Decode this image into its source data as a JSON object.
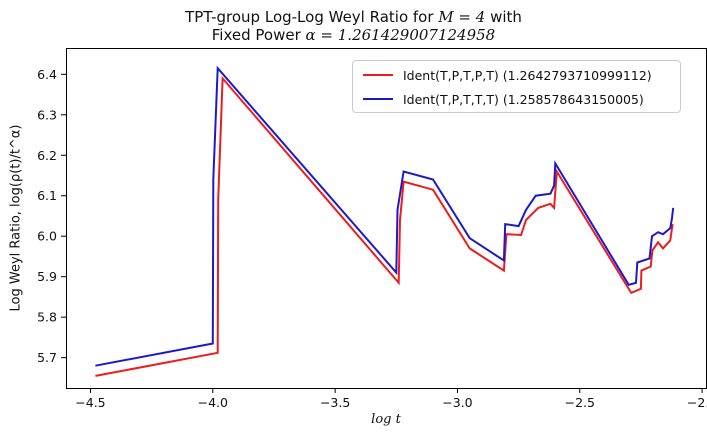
{
  "chart_data": {
    "type": "line",
    "title": "TPT-group Log-Log Weyl Ratio for M = 4 with Fixed Power α = 1.261429007124958",
    "title_parts": {
      "line1_prefix": "TPT-group Log-Log Weyl Ratio for ",
      "line1_math": "M = 4",
      "line1_suffix": " with",
      "line2_prefix": "Fixed Power ",
      "line2_math": "α = 1.261429007124958"
    },
    "xlabel": "log t",
    "ylabel": "Log Weyl Ratio, log(ρ(t)/t^α)",
    "xlim": [
      -4.6,
      -1.98
    ],
    "ylim": [
      5.625,
      6.465
    ],
    "xticks": [
      -4.5,
      -4.0,
      -3.5,
      -3.0,
      -2.5,
      -2.0
    ],
    "xtick_labels": [
      "−4.5",
      "−4.0",
      "−3.5",
      "−3.0",
      "−2.5",
      "−2.0"
    ],
    "yticks": [
      5.7,
      5.8,
      5.9,
      6.0,
      6.1,
      6.2,
      6.3,
      6.4
    ],
    "ytick_labels": [
      "5.7",
      "5.8",
      "5.9",
      "6.0",
      "6.1",
      "6.2",
      "6.3",
      "6.4"
    ],
    "grid": false,
    "legend_position": "upper right",
    "series": [
      {
        "name": "Ident(T,P,T,P,T) (1.2642793710999112)",
        "color": "#ee1c1c",
        "x": [
          -4.48,
          -3.98,
          -3.978,
          -3.96,
          -3.24,
          -3.235,
          -3.22,
          -3.1,
          -2.95,
          -2.81,
          -2.8,
          -2.74,
          -2.72,
          -2.67,
          -2.62,
          -2.605,
          -2.594,
          -2.29,
          -2.25,
          -2.248,
          -2.21,
          -2.203,
          -2.18,
          -2.16,
          -2.13,
          -2.123,
          -2.12
        ],
        "y": [
          5.655,
          5.712,
          6.09,
          6.39,
          5.885,
          6.04,
          6.135,
          6.115,
          5.97,
          5.915,
          6.005,
          6.003,
          6.04,
          6.07,
          6.08,
          6.07,
          6.16,
          5.86,
          5.87,
          5.915,
          5.925,
          5.965,
          5.985,
          5.97,
          5.99,
          6.02,
          6.03
        ]
      },
      {
        "name": "Ident(T,P,T,T,T) (1.258578643150005)",
        "color": "#1a1acc",
        "x": [
          -4.48,
          -4.0,
          -3.998,
          -3.98,
          -3.25,
          -3.245,
          -3.22,
          -3.1,
          -2.95,
          -2.81,
          -2.805,
          -2.75,
          -2.72,
          -2.68,
          -2.62,
          -2.605,
          -2.6,
          -2.3,
          -2.27,
          -2.265,
          -2.215,
          -2.205,
          -2.18,
          -2.16,
          -2.13,
          -2.123,
          -2.118
        ],
        "y": [
          5.68,
          5.735,
          6.14,
          6.415,
          5.91,
          6.065,
          6.16,
          6.14,
          5.995,
          5.94,
          6.03,
          6.025,
          6.065,
          6.1,
          6.105,
          6.125,
          6.18,
          5.88,
          5.885,
          5.935,
          5.945,
          6.0,
          6.01,
          6.005,
          6.02,
          6.045,
          6.07
        ]
      }
    ]
  }
}
